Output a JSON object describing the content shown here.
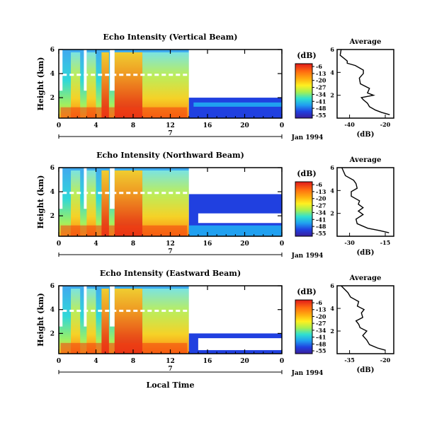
{
  "figure": {
    "xlabel": "Local Time",
    "date_label": "Jan 1994",
    "day_label": "7",
    "colorbar_unit": "(dB)"
  },
  "chart_data": [
    {
      "type": "heatmap",
      "title": "Echo Intensity (Vertical Beam)",
      "xlabel": "",
      "ylabel": "Height (km)",
      "x_ticks": [
        "0",
        "4",
        "8",
        "12",
        "16",
        "20",
        "0"
      ],
      "y_ticks": [
        "6",
        "4",
        "2"
      ],
      "xlim": [
        0,
        24
      ],
      "ylim": [
        0.3,
        6
      ],
      "colorbar": {
        "unit": "(dB)",
        "ticks": [
          "-6",
          "-13",
          "-20",
          "-27",
          "-34",
          "-41",
          "-48",
          "-55"
        ],
        "colors": [
          "#d9201d",
          "#ff5a10",
          "#ff9f10",
          "#ffe020",
          "#b8f040",
          "#40e0c0",
          "#20a0f0",
          "#2040e0",
          "#3b1e9e"
        ]
      },
      "profile": {
        "title": "Average",
        "xlabel": "(dB)",
        "x_ticks": [
          "-40",
          "-20"
        ],
        "y_ticks": [
          "6",
          "4",
          "2"
        ],
        "xlim": [
          -46,
          -18
        ],
        "ylim": [
          0,
          6
        ],
        "x": [
          -44,
          -44.5,
          -41,
          -41,
          -37,
          -33,
          -33,
          -35,
          -34.5,
          -30,
          -31,
          -28,
          -34,
          -33,
          -31,
          -30,
          -27,
          -24,
          -20
        ],
        "y": [
          6,
          5.5,
          5,
          4.8,
          4.6,
          4.2,
          3.9,
          3.5,
          3.0,
          2.6,
          2.2,
          2.0,
          1.8,
          1.6,
          1.3,
          1.0,
          0.7,
          0.5,
          0.3
        ]
      }
    },
    {
      "type": "heatmap",
      "title": "Echo Intensity (Northward Beam)",
      "xlabel": "",
      "ylabel": "Height (km)",
      "x_ticks": [
        "0",
        "4",
        "8",
        "12",
        "16",
        "20",
        "0"
      ],
      "y_ticks": [
        "6",
        "4",
        "2"
      ],
      "xlim": [
        0,
        24
      ],
      "ylim": [
        0.3,
        6
      ],
      "colorbar": {
        "unit": "(dB)",
        "ticks": [
          "-6",
          "-13",
          "-20",
          "-27",
          "-34",
          "-41",
          "-48",
          "-55"
        ],
        "colors": [
          "#d9201d",
          "#ff5a10",
          "#ff9f10",
          "#ffe020",
          "#b8f040",
          "#40e0c0",
          "#20a0f0",
          "#2040e0",
          "#3b1e9e"
        ]
      },
      "profile": {
        "title": "Average",
        "xlabel": "(dB)",
        "x_ticks": [
          "-30",
          "-15"
        ],
        "y_ticks": [
          "6",
          "4",
          "2"
        ],
        "xlim": [
          -36,
          -12
        ],
        "ylim": [
          0,
          6
        ],
        "x": [
          -34,
          -32.5,
          -29,
          -28,
          -27.5,
          -30,
          -30,
          -26.5,
          -27,
          -25,
          -27,
          -25,
          -28,
          -27.5,
          -23,
          -18,
          -14
        ],
        "y": [
          6,
          5.3,
          4.9,
          4.6,
          4.2,
          3.9,
          3.5,
          3.1,
          2.8,
          2.5,
          2.2,
          1.9,
          1.5,
          1.1,
          0.7,
          0.5,
          0.3
        ]
      }
    },
    {
      "type": "heatmap",
      "title": "Echo Intensity (Eastward Beam)",
      "xlabel": "Local Time",
      "ylabel": "Height (km)",
      "x_ticks": [
        "0",
        "4",
        "8",
        "12",
        "16",
        "20",
        "0"
      ],
      "y_ticks": [
        "6",
        "4",
        "2"
      ],
      "xlim": [
        0,
        24
      ],
      "ylim": [
        0.3,
        6
      ],
      "colorbar": {
        "unit": "(dB)",
        "ticks": [
          "-6",
          "-13",
          "-20",
          "-27",
          "-34",
          "-41",
          "-48",
          "-55"
        ],
        "colors": [
          "#d9201d",
          "#ff5a10",
          "#ff9f10",
          "#ffe020",
          "#b8f040",
          "#40e0c0",
          "#20a0f0",
          "#2040e0",
          "#3b1e9e"
        ]
      },
      "profile": {
        "title": "Average",
        "xlabel": "(dB)",
        "x_ticks": [
          "-35",
          "-20"
        ],
        "y_ticks": [
          "6",
          "4",
          "2"
        ],
        "xlim": [
          -38,
          -17
        ],
        "ylim": [
          0,
          6
        ],
        "x": [
          -36.5,
          -34,
          -33,
          -30,
          -30.5,
          -28,
          -29,
          -28.5,
          -31,
          -30,
          -29.5,
          -27,
          -28.5,
          -27,
          -26,
          -23,
          -20
        ],
        "y": [
          6,
          5.4,
          5.0,
          4.6,
          4.2,
          3.9,
          3.6,
          3.2,
          2.9,
          2.6,
          2.3,
          2.0,
          1.6,
          1.2,
          0.8,
          0.5,
          0.3
        ]
      }
    }
  ]
}
